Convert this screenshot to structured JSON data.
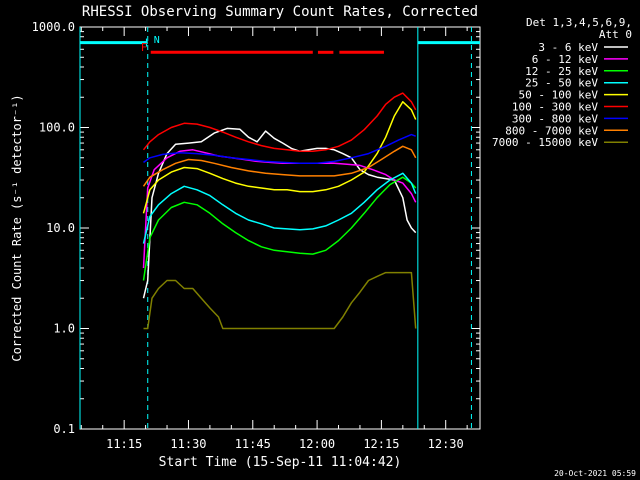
{
  "chart_data": {
    "type": "line",
    "title": "RHESSI Observing Summary Count Rates, Corrected",
    "xlabel": "Start Time (15-Sep-11 11:04:42)",
    "ylabel": "Corrected Count Rate (s⁻¹ detector⁻¹)",
    "x_tick_labels": [
      "11:15",
      "11:30",
      "11:45",
      "12:00",
      "12:15",
      "12:30"
    ],
    "x_tick_minutes": [
      15,
      30,
      45,
      60,
      75,
      90
    ],
    "xlim_minutes": [
      4.7,
      98.0
    ],
    "y_tick_labels": [
      "0.1",
      "1.0",
      "10.0",
      "100.0",
      "1000.0"
    ],
    "y_tick_values": [
      0.1,
      1,
      10,
      100,
      1000
    ],
    "ylim": [
      0.1,
      1000
    ],
    "yscale": "log",
    "x_minutes_note_values": "minutes after 11:00 UT",
    "legend_header": [
      "Det 1,3,4,5,6,9,",
      "Att 0"
    ],
    "legend_position": "right",
    "footer_date": "20-Oct-2021 05:59",
    "series": [
      {
        "name": "3 - 6 keV",
        "color": "#ffffff",
        "x": [
          19.5,
          20.5,
          21.5,
          23,
          25,
          27,
          30,
          33,
          36,
          39,
          42,
          44,
          46,
          48,
          50,
          52,
          54,
          56,
          58,
          60,
          62,
          64,
          66,
          68,
          70,
          72,
          74,
          76,
          78,
          80,
          81,
          82,
          83
        ],
        "y": [
          2.0,
          3.0,
          20.0,
          35.0,
          55.0,
          68.0,
          70.0,
          72.0,
          88.0,
          98.0,
          96.0,
          80.0,
          72.0,
          92.0,
          78.0,
          70.0,
          62.0,
          58.0,
          60.0,
          62.0,
          62.0,
          60.0,
          55.0,
          50.0,
          38.0,
          34.0,
          32.0,
          31.0,
          30.0,
          20.0,
          12.0,
          10.0,
          9.0
        ]
      },
      {
        "name": "6 - 12 keV",
        "color": "#ff00ff",
        "x": [
          19.5,
          20.5,
          22,
          25,
          28,
          31,
          34,
          37,
          40,
          43,
          46,
          49,
          52,
          55,
          58,
          61,
          64,
          67,
          70,
          73,
          76,
          78,
          80,
          82,
          83
        ],
        "y": [
          4.0,
          25.0,
          38.0,
          50.0,
          58.0,
          60.0,
          56.0,
          52.0,
          50.0,
          48.0,
          46.0,
          45.0,
          44.0,
          44.0,
          44.0,
          44.0,
          44.0,
          43.0,
          42.0,
          38.0,
          34.0,
          30.0,
          28.0,
          22.0,
          18.0
        ]
      },
      {
        "name": "12 - 25 keV",
        "color": "#00ff00",
        "x": [
          19.5,
          21,
          23,
          26,
          29,
          32,
          35,
          38,
          41,
          44,
          47,
          50,
          53,
          56,
          59,
          62,
          65,
          68,
          71,
          74,
          77,
          80,
          82,
          83
        ],
        "y": [
          3.0,
          8.0,
          12.0,
          16.0,
          18.0,
          17.0,
          14.0,
          11.0,
          9.0,
          7.5,
          6.5,
          6.0,
          5.8,
          5.6,
          5.5,
          6.0,
          7.5,
          10.0,
          14.0,
          20.0,
          27.0,
          32.0,
          28.0,
          25.0
        ]
      },
      {
        "name": "25 - 50 keV",
        "color": "#00ffff",
        "x": [
          19.5,
          21,
          23,
          26,
          29,
          32,
          35,
          38,
          41,
          44,
          47,
          50,
          53,
          56,
          59,
          62,
          65,
          68,
          71,
          74,
          77,
          80,
          82,
          83
        ],
        "y": [
          7.0,
          13.0,
          17.0,
          22.0,
          26.0,
          24.0,
          21.0,
          17.0,
          14.0,
          12.0,
          11.0,
          10.0,
          9.8,
          9.6,
          9.8,
          10.5,
          12.0,
          14.0,
          18.0,
          24.0,
          30.0,
          35.0,
          28.0,
          22.0
        ]
      },
      {
        "name": "50 - 100 keV",
        "color": "#ffff00",
        "x": [
          19.5,
          21,
          23,
          26,
          29,
          32,
          35,
          38,
          41,
          44,
          47,
          50,
          53,
          56,
          59,
          62,
          65,
          68,
          71,
          74,
          76,
          78,
          80,
          82,
          83
        ],
        "y": [
          14.0,
          24.0,
          30.0,
          36.0,
          40.0,
          39.0,
          35.0,
          31.0,
          28.0,
          26.0,
          25.0,
          24.0,
          24.0,
          23.0,
          23.0,
          24.0,
          26.0,
          30.0,
          36.0,
          55.0,
          80.0,
          130.0,
          180.0,
          150.0,
          120.0
        ]
      },
      {
        "name": "100 - 300 keV",
        "color": "#ff0000",
        "x": [
          19.5,
          21,
          23,
          26,
          29,
          32,
          35,
          38,
          41,
          44,
          47,
          50,
          53,
          56,
          59,
          62,
          65,
          68,
          71,
          74,
          76,
          78,
          80,
          82,
          83
        ],
        "y": [
          60.0,
          72.0,
          85.0,
          100.0,
          110.0,
          108.0,
          100.0,
          90.0,
          80.0,
          72.0,
          66.0,
          62.0,
          60.0,
          58.0,
          58.0,
          60.0,
          65.0,
          75.0,
          95.0,
          130.0,
          170.0,
          200.0,
          220.0,
          180.0,
          150.0
        ]
      },
      {
        "name": "300 - 800 keV",
        "color": "#0000ff",
        "x": [
          19.5,
          21,
          24,
          28,
          32,
          36,
          40,
          44,
          48,
          52,
          56,
          60,
          64,
          68,
          72,
          76,
          79,
          82,
          83
        ],
        "y": [
          45.0,
          50.0,
          54.0,
          56.0,
          55.0,
          53.0,
          50.0,
          48.0,
          46.0,
          45.0,
          44.0,
          44.0,
          46.0,
          50.0,
          55.0,
          65.0,
          75.0,
          85.0,
          82.0
        ]
      },
      {
        "name": "800 - 7000 keV",
        "color": "#ff8000",
        "x": [
          19.5,
          21,
          24,
          27,
          30,
          33,
          36,
          40,
          44,
          48,
          52,
          56,
          60,
          64,
          68,
          72,
          75,
          78,
          80,
          82,
          83
        ],
        "y": [
          26.0,
          32.0,
          38.0,
          44.0,
          48.0,
          47.0,
          44.0,
          40.0,
          37.0,
          35.0,
          34.0,
          33.0,
          33.0,
          33.0,
          35.0,
          40.0,
          48.0,
          58.0,
          65.0,
          60.0,
          50.0
        ]
      },
      {
        "name": "7000 - 15000 keV",
        "color": "#808000",
        "x": [
          19.5,
          20.5,
          21.5,
          23,
          25,
          27,
          29,
          31,
          33,
          35,
          37,
          38,
          39,
          40,
          42,
          44,
          46,
          48,
          50,
          52,
          54,
          56,
          58,
          60,
          62,
          64,
          66,
          68,
          70,
          72,
          74,
          76,
          78,
          80,
          82,
          83
        ],
        "y": [
          1.0,
          1.0,
          2.0,
          2.5,
          3.0,
          3.0,
          2.5,
          2.5,
          2.0,
          1.6,
          1.3,
          1.0,
          1.0,
          1.0,
          1.0,
          1.0,
          1.0,
          1.0,
          1.0,
          1.0,
          1.0,
          1.0,
          1.0,
          1.0,
          1.0,
          1.0,
          1.3,
          1.8,
          2.3,
          3.0,
          3.3,
          3.6,
          3.6,
          3.6,
          3.6,
          1.0
        ]
      }
    ],
    "attenuator_segments": [
      [
        4.7,
        20.5
      ],
      [
        83.5,
        98.0
      ]
    ],
    "attenuator_level": 700,
    "attenuator_tick_x": 20.2,
    "flare_label": "F",
    "night_label": "N",
    "flare_segments": [
      [
        21.2,
        59.0
      ],
      [
        60.2,
        63.8
      ],
      [
        65.2,
        75.6
      ]
    ],
    "flare_level": 560,
    "dashed_markers": [
      20.5,
      96.0
    ],
    "solid_markers": [
      4.7,
      83.5
    ],
    "colors": {
      "background": "#000000",
      "axes": "#ffffff",
      "markers": "#00ffff",
      "flare": "#ff0000"
    }
  }
}
